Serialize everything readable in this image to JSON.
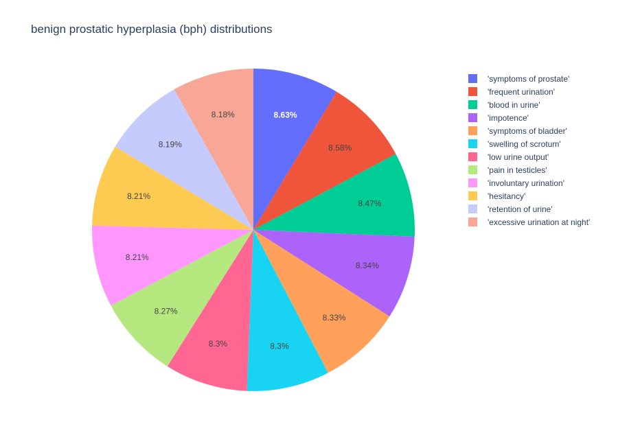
{
  "chart_data": {
    "type": "pie",
    "title": "benign prostatic hyperplasia (bph) distributions",
    "slices": [
      {
        "label": "'symptoms of prostate'",
        "percent": 8.63,
        "color": "#636efa",
        "text_color": "#ffffff"
      },
      {
        "label": "'frequent urination'",
        "percent": 8.58,
        "color": "#ef553b",
        "text_color": "#444444"
      },
      {
        "label": "'blood in urine'",
        "percent": 8.47,
        "color": "#00cc96",
        "text_color": "#444444"
      },
      {
        "label": "'impotence'",
        "percent": 8.34,
        "color": "#ab63fa",
        "text_color": "#444444"
      },
      {
        "label": "'symptoms of bladder'",
        "percent": 8.33,
        "color": "#ffa15a",
        "text_color": "#444444"
      },
      {
        "label": "'swelling of scrotum'",
        "percent": 8.3,
        "color": "#19d3f3",
        "text_color": "#444444"
      },
      {
        "label": "'low urine output'",
        "percent": 8.3,
        "color": "#ff6692",
        "text_color": "#444444"
      },
      {
        "label": "'pain in testicles'",
        "percent": 8.27,
        "color": "#b6e880",
        "text_color": "#444444"
      },
      {
        "label": "'involuntary urination'",
        "percent": 8.21,
        "color": "#ff97ff",
        "text_color": "#444444"
      },
      {
        "label": "'hesitancy'",
        "percent": 8.21,
        "color": "#fecb52",
        "text_color": "#444444"
      },
      {
        "label": "'retention of urine'",
        "percent": 8.19,
        "color": "#c6cbfd",
        "text_color": "#444444"
      },
      {
        "label": "'excessive urination at night'",
        "percent": 8.18,
        "color": "#f8a797",
        "text_color": "#444444"
      }
    ],
    "slice_labels": [
      "8.63%",
      "8.58%",
      "8.47%",
      "8.34%",
      "8.33%",
      "8.3%",
      "8.3%",
      "8.27%",
      "8.21%",
      "8.21%",
      "8.19%",
      "8.18%"
    ],
    "direction": "counterclockwise",
    "legend_position": "right"
  }
}
